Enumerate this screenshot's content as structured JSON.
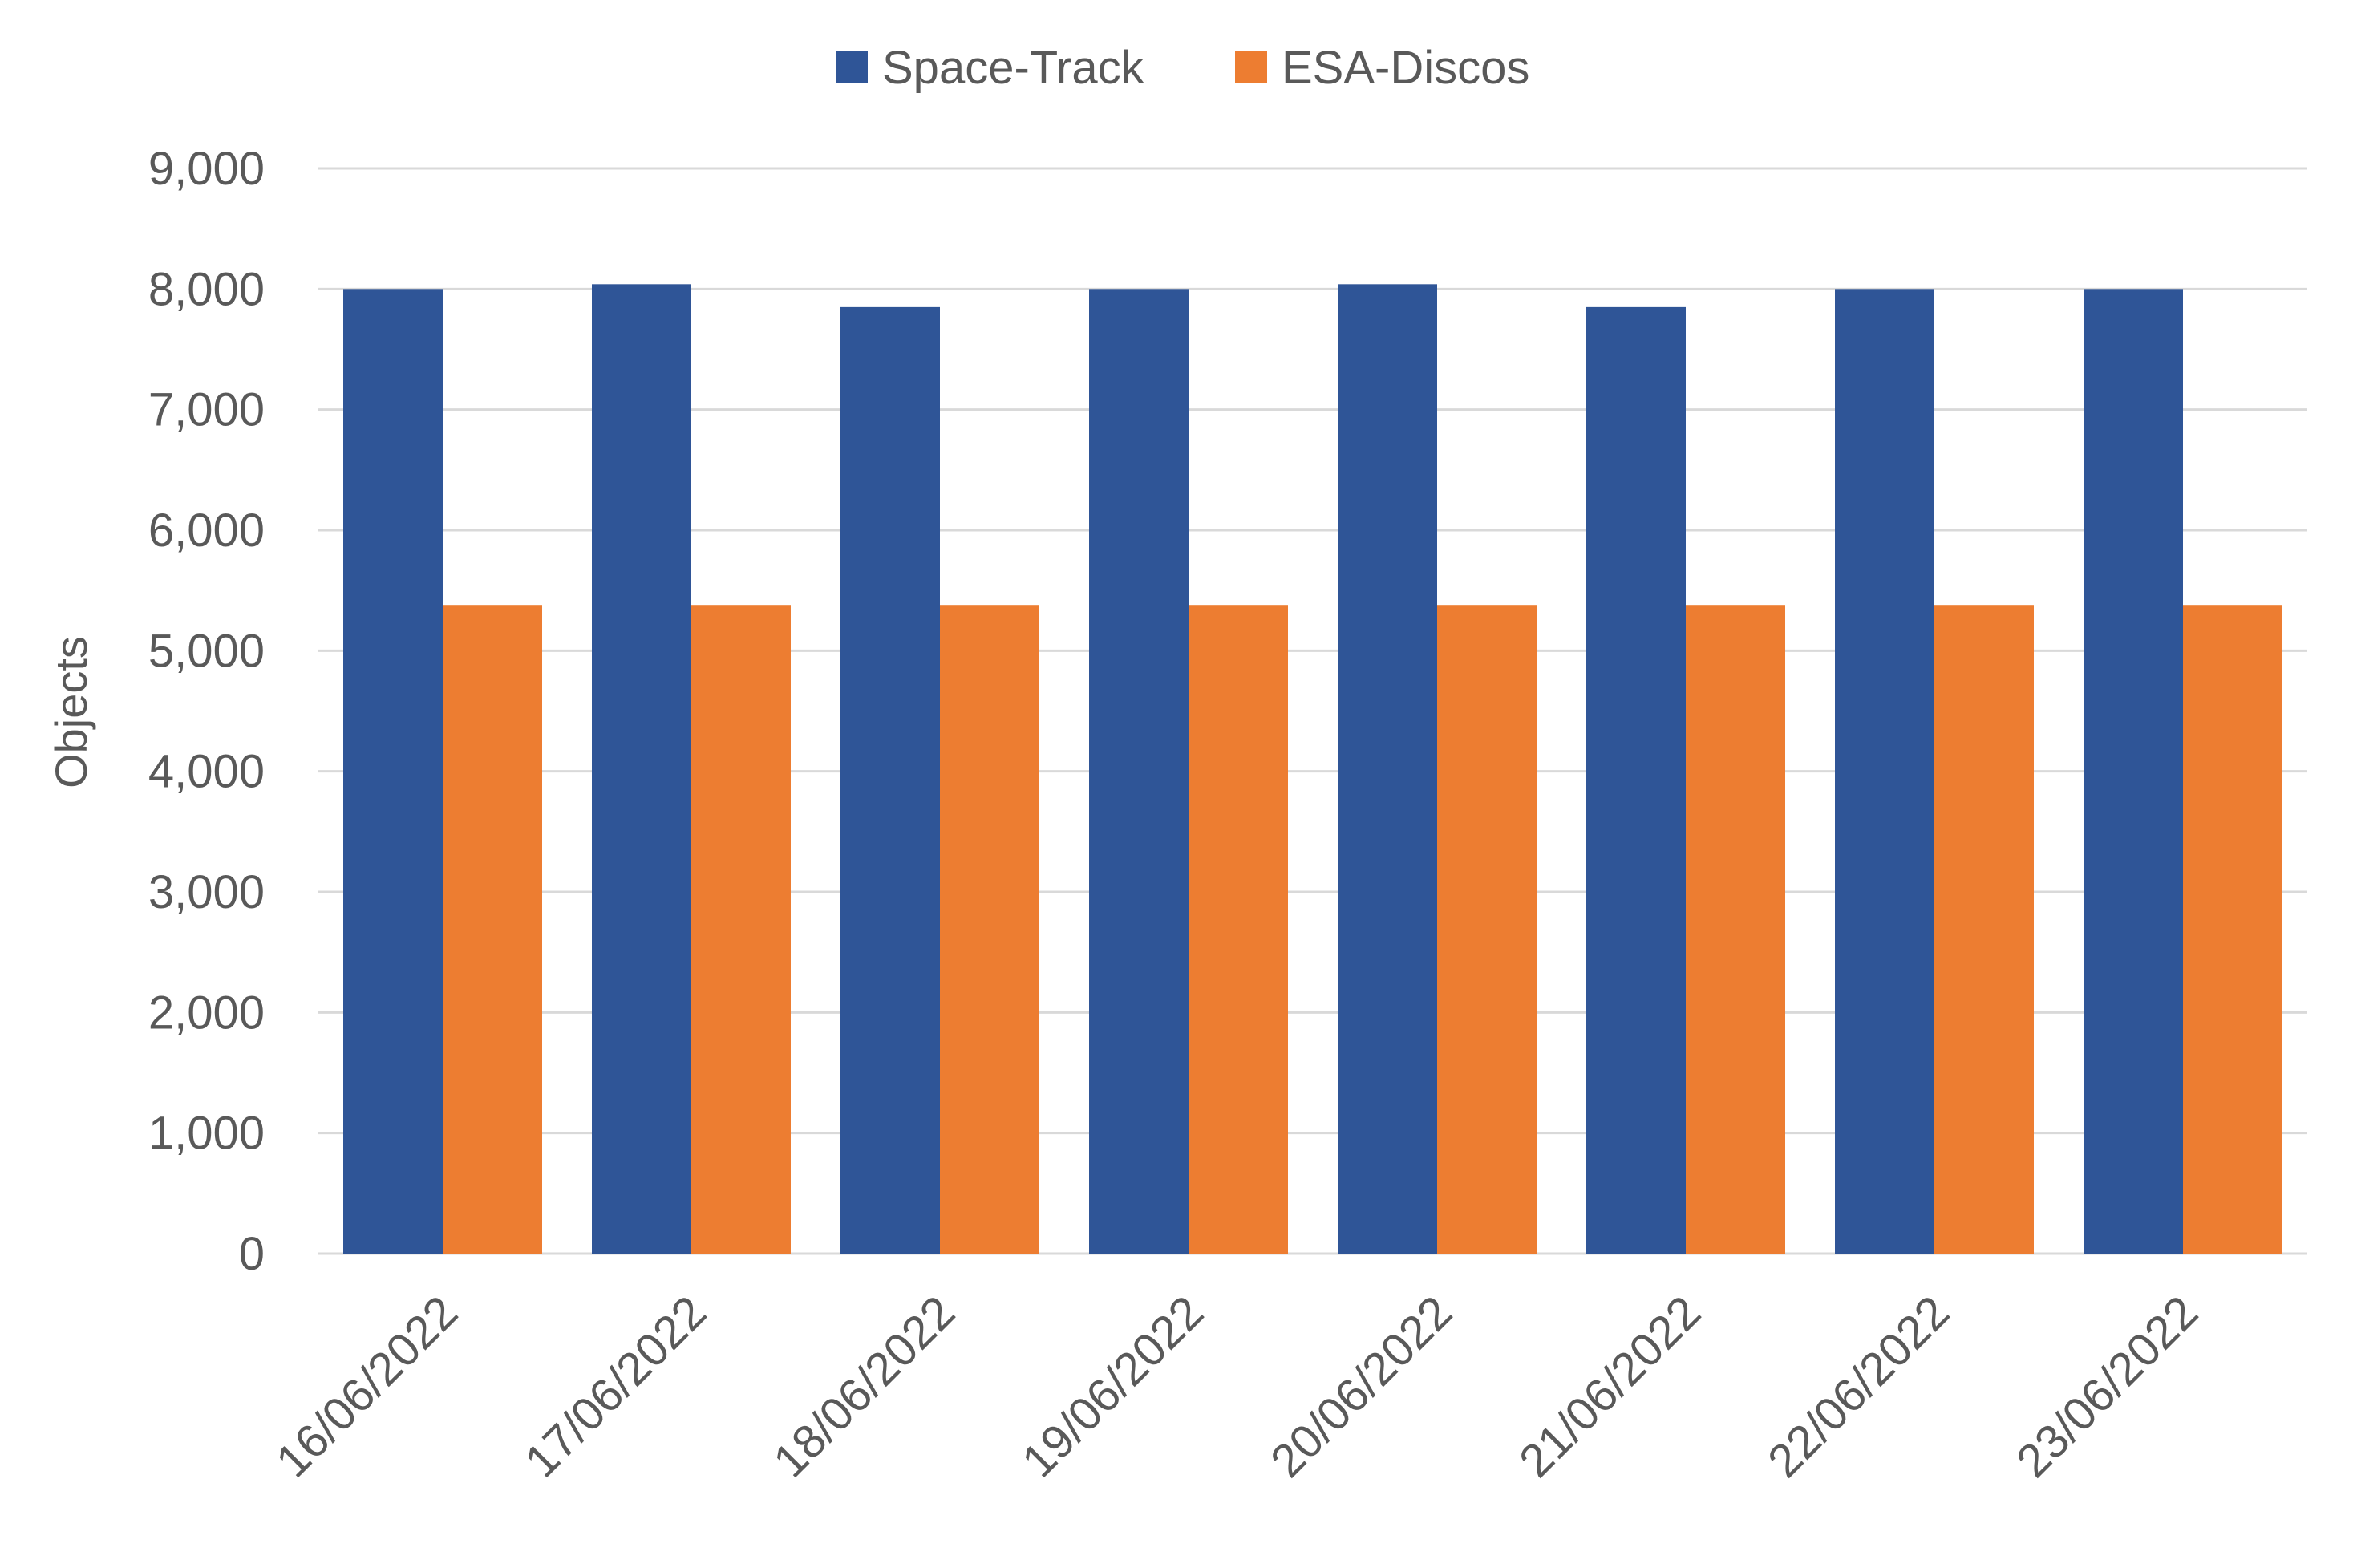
{
  "chart_data": {
    "type": "bar",
    "title": "",
    "xlabel": "",
    "ylabel": "Objects",
    "ylim": [
      0,
      9000
    ],
    "y_ticks": [
      0,
      1000,
      2000,
      3000,
      4000,
      5000,
      6000,
      7000,
      8000,
      9000
    ],
    "y_tick_labels": [
      "0",
      "1,000",
      "2,000",
      "3,000",
      "4,000",
      "5,000",
      "6,000",
      "7,000",
      "8,000",
      "9,000"
    ],
    "grid": true,
    "legend_position": "top-center",
    "categories": [
      "16/06/2022",
      "17/06/2022",
      "18/06/2022",
      "19/06/2022",
      "20/06/2022",
      "21/06/2022",
      "22/06/2022",
      "23/06/2022"
    ],
    "series": [
      {
        "name": "Space-Track",
        "color": "#2F5597",
        "values": [
          8000,
          8040,
          7850,
          8000,
          8040,
          7850,
          8000,
          8000
        ]
      },
      {
        "name": "ESA-Discos",
        "color": "#ED7D31",
        "values": [
          5380,
          5380,
          5380,
          5380,
          5380,
          5380,
          5380,
          5380
        ]
      }
    ]
  },
  "colors": {
    "gridline": "#D9D9D9",
    "text": "#595959",
    "background": "#FFFFFF"
  }
}
